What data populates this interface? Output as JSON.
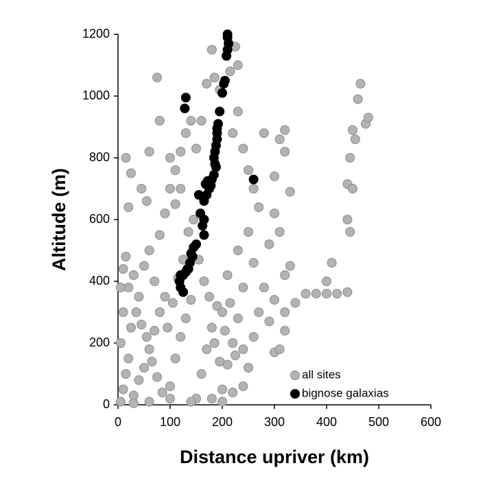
{
  "chart_data": {
    "type": "scatter",
    "xlabel": "Distance upriver (km)",
    "ylabel": "Altitude (m)",
    "xlim": [
      0,
      600
    ],
    "xticks": [
      0,
      100,
      200,
      300,
      400,
      500,
      600
    ],
    "ylim": [
      0,
      1200
    ],
    "yticks": [
      0,
      200,
      400,
      600,
      800,
      1000,
      1200
    ],
    "grid": false,
    "legend": "lower right",
    "series": [
      {
        "name": "all sites",
        "color": "#b3b3b3",
        "x": [
          5,
          10,
          15,
          20,
          5,
          25,
          30,
          40,
          50,
          60,
          70,
          80,
          90,
          100,
          110,
          120,
          130,
          140,
          150,
          160,
          170,
          180,
          190,
          200,
          210,
          220,
          230,
          240,
          250,
          10,
          20,
          30,
          40,
          50,
          60,
          70,
          80,
          90,
          100,
          110,
          120,
          130,
          140,
          15,
          20,
          15,
          25,
          45,
          55,
          60,
          75,
          80,
          100,
          110,
          120,
          150,
          160,
          170,
          180,
          185,
          195,
          215,
          225,
          230,
          230,
          220,
          240,
          250,
          260,
          270,
          280,
          300,
          310,
          320,
          300,
          310,
          320,
          330,
          290,
          280,
          260,
          250,
          240,
          230,
          210,
          200,
          270,
          300,
          320,
          340,
          360,
          380,
          400,
          420,
          400,
          410,
          330,
          320,
          440,
          440,
          445,
          440,
          445,
          450,
          450,
          455,
          460,
          465,
          475,
          480,
          300,
          310,
          320,
          290,
          260,
          240,
          220,
          200,
          180,
          140,
          100,
          60,
          30,
          5,
          10,
          35,
          45,
          55,
          65,
          75,
          85,
          95,
          105,
          115,
          125,
          135,
          145,
          155,
          165,
          175,
          185,
          195,
          205,
          215,
          225
        ],
        "values": [
          10,
          50,
          100,
          150,
          200,
          250,
          30,
          80,
          120,
          180,
          240,
          300,
          350,
          60,
          150,
          220,
          280,
          340,
          20,
          100,
          180,
          250,
          320,
          50,
          130,
          200,
          280,
          60,
          120,
          300,
          380,
          420,
          350,
          450,
          500,
          400,
          550,
          620,
          700,
          760,
          820,
          880,
          920,
          480,
          640,
          800,
          750,
          700,
          660,
          820,
          1060,
          920,
          800,
          650,
          700,
          830,
          920,
          1040,
          1150,
          1060,
          1020,
          1080,
          1160,
          1100,
          950,
          880,
          830,
          760,
          700,
          640,
          880,
          620,
          860,
          890,
          740,
          560,
          420,
          450,
          520,
          380,
          460,
          560,
          380,
          500,
          420,
          300,
          300,
          340,
          300,
          330,
          360,
          360,
          360,
          360,
          400,
          460,
          690,
          820,
          365,
          600,
          560,
          715,
          800,
          700,
          890,
          860,
          990,
          1040,
          910,
          930,
          170,
          180,
          240,
          270,
          220,
          180,
          40,
          10,
          20,
          10,
          20,
          10,
          5,
          380,
          440,
          300,
          260,
          220,
          140,
          90,
          40,
          250,
          330,
          410,
          470,
          560,
          600,
          470,
          400,
          350,
          200,
          140,
          240,
          330,
          160
        ]
      },
      {
        "name": "bignose galaxias",
        "color": "#000000",
        "x": [
          210,
          210,
          212,
          210,
          208,
          205,
          203,
          200,
          130,
          128,
          195,
          192,
          190,
          190,
          190,
          188,
          186,
          184,
          186,
          188,
          184,
          180,
          172,
          168,
          260,
          178,
          175,
          155,
          170,
          165,
          158,
          165,
          162,
          165,
          150,
          145,
          140,
          143,
          138,
          135,
          130,
          125,
          120,
          118,
          120,
          125,
          133
        ],
        "values": [
          1200,
          1190,
          1170,
          1150,
          1130,
          1050,
          1040,
          1010,
          995,
          960,
          950,
          910,
          895,
          880,
          860,
          840,
          820,
          800,
          780,
          770,
          745,
          730,
          725,
          715,
          730,
          710,
          700,
          680,
          680,
          660,
          620,
          600,
          580,
          550,
          520,
          510,
          490,
          480,
          460,
          440,
          430,
          420,
          420,
          400,
          380,
          365,
          440
        ]
      }
    ]
  }
}
